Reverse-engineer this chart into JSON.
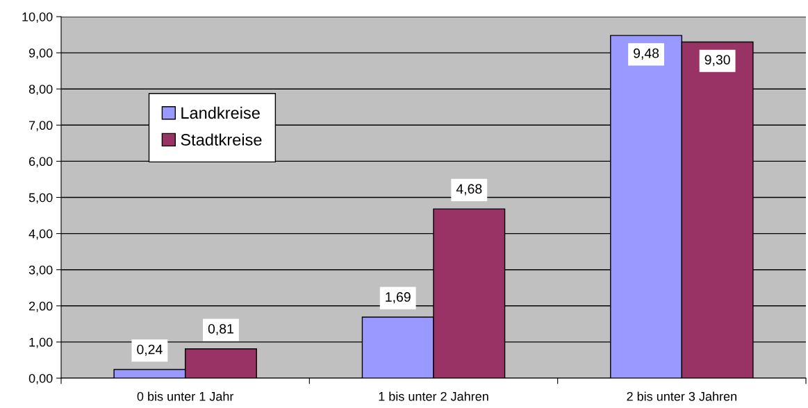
{
  "chart_data": {
    "type": "bar",
    "categories": [
      "0 bis unter 1 Jahr",
      "1 bis unter 2 Jahren",
      "2 bis unter 3 Jahren"
    ],
    "series": [
      {
        "name": "Landkreise",
        "color": "#9999ff",
        "values": [
          0.24,
          1.69,
          9.48
        ],
        "value_labels": [
          "0,24",
          "1,69",
          "9,48"
        ]
      },
      {
        "name": "Stadtkreise",
        "color": "#993366",
        "values": [
          0.81,
          4.68,
          9.3
        ],
        "value_labels": [
          "0,81",
          "4,68",
          "9,30"
        ]
      }
    ],
    "ylim": [
      0,
      10
    ],
    "yticks": [
      {
        "value": 0,
        "label": "0,00"
      },
      {
        "value": 1,
        "label": "1,00"
      },
      {
        "value": 2,
        "label": "2,00"
      },
      {
        "value": 3,
        "label": "3,00"
      },
      {
        "value": 4,
        "label": "4,00"
      },
      {
        "value": 5,
        "label": "5,00"
      },
      {
        "value": 6,
        "label": "6,00"
      },
      {
        "value": 7,
        "label": "7,00"
      },
      {
        "value": 8,
        "label": "8,00"
      },
      {
        "value": 9,
        "label": "9,00"
      },
      {
        "value": 10,
        "label": "10,00"
      }
    ],
    "grid": "y",
    "legend": "top left"
  }
}
